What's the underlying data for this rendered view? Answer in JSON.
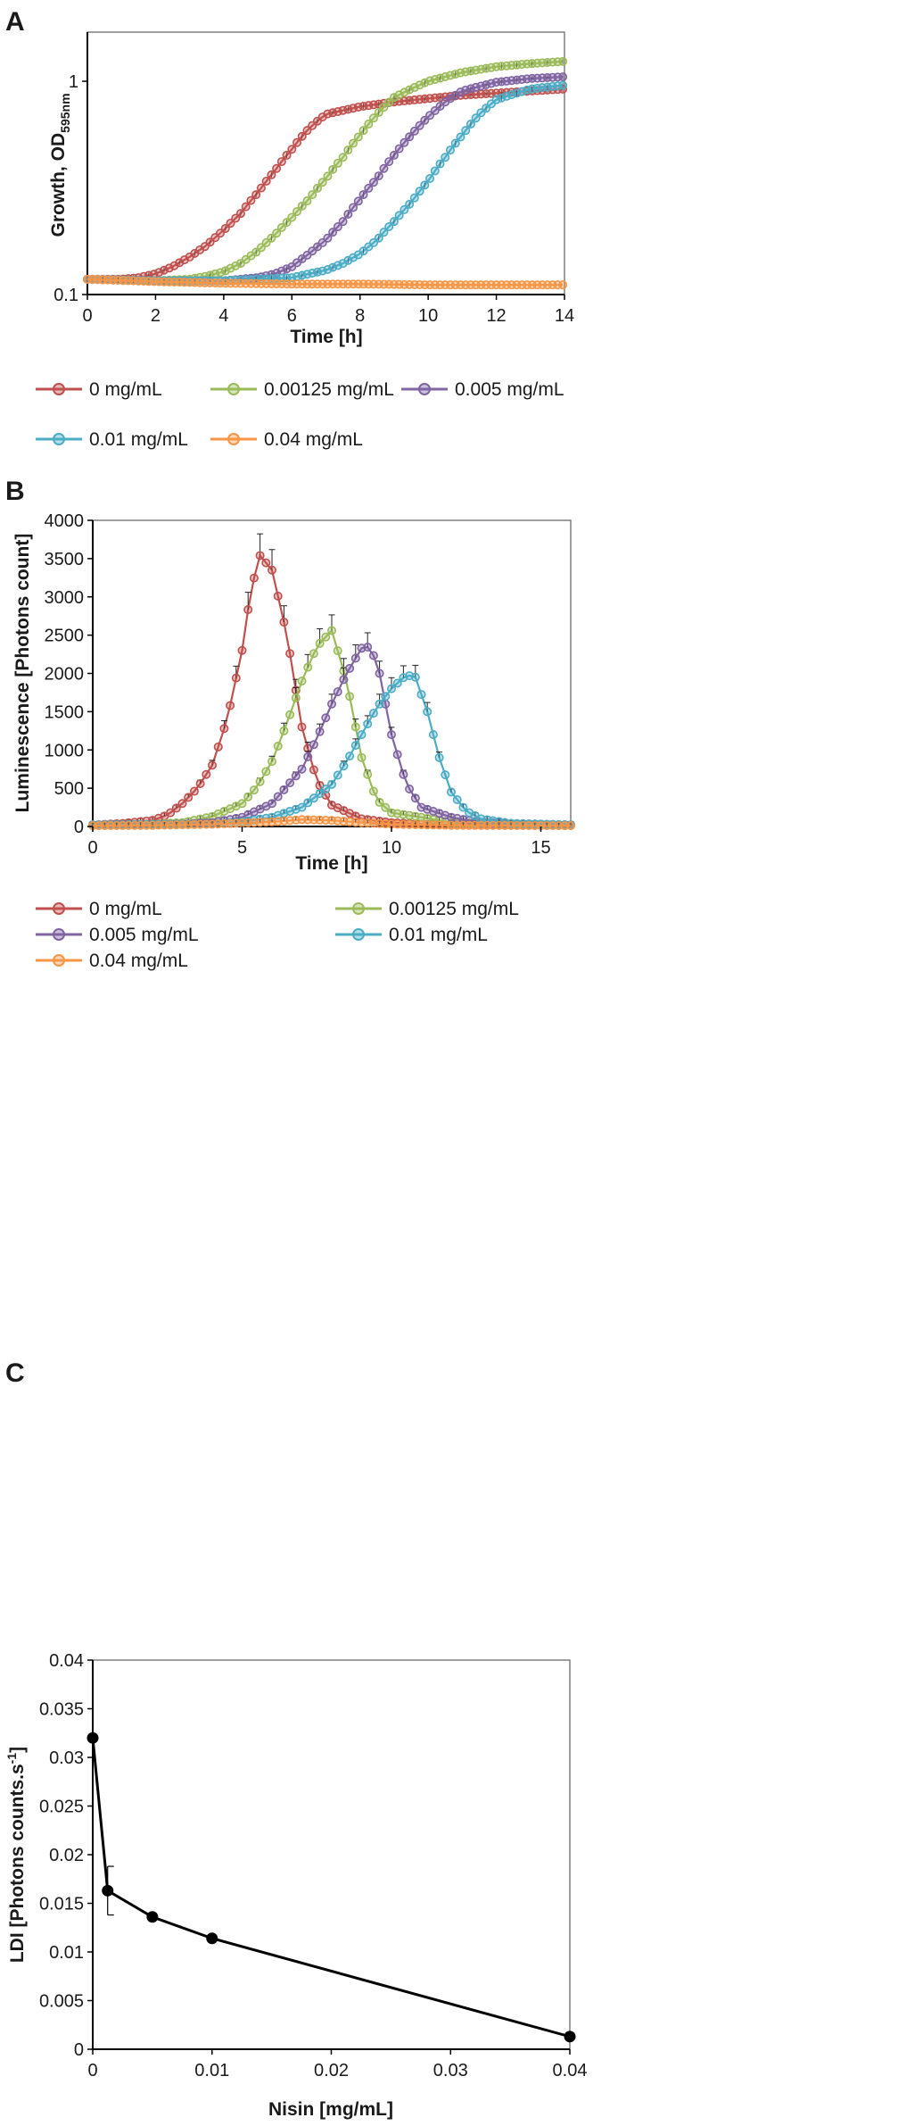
{
  "panels": {
    "A": "A",
    "B": "B",
    "C": "C"
  },
  "chart_data": [
    {
      "id": "A",
      "type": "line",
      "yscale": "log",
      "title": "",
      "xlabel": "Time [h]",
      "ylabel": "Growth, OD595nm",
      "ylabel_main": "Growth, OD",
      "ylabel_sub": "595nm",
      "xlim": [
        0,
        14
      ],
      "ylim": [
        0.1,
        1.7
      ],
      "xticks": [
        0,
        2,
        4,
        6,
        8,
        10,
        12,
        14
      ],
      "xtick_labels": [
        "0",
        "2",
        "4",
        "6",
        "8",
        "10",
        "12",
        "14"
      ],
      "yticks": [
        0.1,
        1
      ],
      "ytick_labels": [
        "0.1",
        "1"
      ],
      "grid": false,
      "legend_position": "bottom",
      "series": [
        {
          "name": "0 mg/mL",
          "color": "#c0504d",
          "x": [
            0,
            1,
            1.5,
            2,
            2.5,
            3,
            3.5,
            4,
            4.5,
            5,
            5.5,
            6,
            6.5,
            7,
            8,
            9,
            10,
            11,
            12,
            13,
            14
          ],
          "y": [
            0.118,
            0.118,
            0.12,
            0.125,
            0.135,
            0.15,
            0.17,
            0.2,
            0.24,
            0.3,
            0.38,
            0.48,
            0.6,
            0.7,
            0.76,
            0.8,
            0.83,
            0.86,
            0.88,
            0.9,
            0.92
          ]
        },
        {
          "name": "0.00125 mg/mL",
          "color": "#9bbb59",
          "x": [
            0,
            1,
            2,
            3,
            3.5,
            4,
            4.5,
            5,
            5.5,
            6,
            6.5,
            7,
            7.5,
            8,
            8.5,
            9,
            10,
            11,
            12,
            13,
            14
          ],
          "y": [
            0.118,
            0.117,
            0.116,
            0.118,
            0.122,
            0.128,
            0.14,
            0.16,
            0.19,
            0.23,
            0.28,
            0.35,
            0.44,
            0.56,
            0.7,
            0.84,
            1.0,
            1.1,
            1.17,
            1.21,
            1.24
          ]
        },
        {
          "name": "0.005 mg/mL",
          "color": "#8064a2",
          "x": [
            0,
            2,
            4,
            5,
            5.5,
            6,
            6.5,
            7,
            7.5,
            8,
            8.5,
            9,
            9.5,
            10,
            10.5,
            11,
            12,
            13,
            14
          ],
          "y": [
            0.118,
            0.116,
            0.116,
            0.12,
            0.125,
            0.135,
            0.155,
            0.18,
            0.22,
            0.28,
            0.35,
            0.45,
            0.56,
            0.68,
            0.8,
            0.9,
            0.99,
            1.03,
            1.05
          ]
        },
        {
          "name": "0.01 mg/mL",
          "color": "#4bacc6",
          "x": [
            0,
            2,
            4,
            6,
            6.5,
            7,
            7.5,
            8,
            8.5,
            9,
            9.5,
            10,
            10.5,
            11,
            11.5,
            12,
            13,
            14
          ],
          "y": [
            0.118,
            0.116,
            0.116,
            0.12,
            0.125,
            0.13,
            0.14,
            0.155,
            0.18,
            0.22,
            0.27,
            0.34,
            0.44,
            0.56,
            0.7,
            0.82,
            0.92,
            0.96
          ]
        },
        {
          "name": "0.04 mg/mL",
          "color": "#f79646",
          "x": [
            0,
            2,
            4,
            6,
            8,
            10,
            12,
            14
          ],
          "y": [
            0.118,
            0.115,
            0.113,
            0.112,
            0.112,
            0.111,
            0.111,
            0.111
          ]
        }
      ]
    },
    {
      "id": "B",
      "type": "line",
      "title": "",
      "xlabel": "Time [h]",
      "ylabel": "Luminescence [Photons count]",
      "xlim": [
        0,
        16
      ],
      "ylim": [
        0,
        4000
      ],
      "xticks": [
        0,
        5,
        10,
        15
      ],
      "xtick_labels": [
        "0",
        "5",
        "10",
        "15"
      ],
      "yticks": [
        0,
        500,
        1000,
        1500,
        2000,
        2500,
        3000,
        3500,
        4000
      ],
      "ytick_labels": [
        "0",
        "500",
        "1000",
        "1500",
        "2000",
        "2500",
        "3000",
        "3500",
        "4000"
      ],
      "grid": false,
      "legend_position": "bottom",
      "series": [
        {
          "name": "0 mg/mL",
          "color": "#c0504d",
          "x": [
            0,
            1,
            2,
            2.5,
            3,
            3.5,
            4,
            4.5,
            5,
            5.3,
            5.6,
            6,
            6.5,
            7,
            7.5,
            8,
            9,
            10,
            11,
            12,
            16
          ],
          "y": [
            20,
            40,
            80,
            150,
            300,
            500,
            800,
            1400,
            2300,
            3100,
            3540,
            3350,
            2500,
            1300,
            600,
            280,
            100,
            50,
            30,
            20,
            20
          ]
        },
        {
          "name": "0.00125 mg/mL",
          "color": "#9bbb59",
          "x": [
            0,
            2,
            3,
            4,
            5,
            5.5,
            6,
            6.5,
            7,
            7.5,
            8,
            8.5,
            9,
            9.5,
            10,
            11,
            12,
            16
          ],
          "y": [
            20,
            30,
            50,
            130,
            300,
            520,
            850,
            1350,
            1900,
            2350,
            2560,
            1900,
            900,
            350,
            180,
            120,
            50,
            20
          ]
        },
        {
          "name": "0.005 mg/mL",
          "color": "#8064a2",
          "x": [
            0,
            3,
            4,
            5,
            6,
            7,
            7.5,
            8,
            8.5,
            9,
            9.3,
            9.6,
            10,
            10.5,
            11,
            12,
            13,
            16
          ],
          "y": [
            20,
            30,
            50,
            120,
            300,
            750,
            1150,
            1600,
            2000,
            2330,
            2350,
            2000,
            1200,
            550,
            250,
            120,
            50,
            20
          ]
        },
        {
          "name": "0.01 mg/mL",
          "color": "#4bacc6",
          "x": [
            0,
            4,
            5,
            6,
            7,
            8,
            8.5,
            9,
            9.5,
            10,
            10.5,
            10.8,
            11.2,
            11.6,
            12,
            12.5,
            13,
            14,
            16
          ],
          "y": [
            20,
            30,
            60,
            120,
            250,
            550,
            850,
            1200,
            1550,
            1800,
            1980,
            1950,
            1500,
            900,
            450,
            200,
            100,
            40,
            20
          ]
        },
        {
          "name": "0.04 mg/mL",
          "color": "#f79646",
          "x": [
            0,
            2,
            4,
            6,
            7,
            8,
            9,
            10,
            12,
            16
          ],
          "y": [
            10,
            15,
            30,
            60,
            90,
            80,
            50,
            30,
            15,
            10
          ]
        }
      ]
    },
    {
      "id": "C",
      "type": "line",
      "title": "",
      "xlabel": "Nisin [mg/mL]",
      "ylabel": "LDI [Photons counts.s-1]",
      "ylabel_main": "LDI [Photons counts.s",
      "ylabel_sup": "-1",
      "ylabel_end": "]",
      "xlim": [
        0,
        0.04
      ],
      "ylim": [
        0,
        0.04
      ],
      "xticks": [
        0,
        0.01,
        0.02,
        0.03,
        0.04
      ],
      "xtick_labels": [
        "0",
        "0.01",
        "0.02",
        "0.03",
        "0.04"
      ],
      "yticks": [
        0,
        0.005,
        0.01,
        0.015,
        0.02,
        0.025,
        0.03,
        0.035,
        0.04
      ],
      "ytick_labels": [
        "0",
        "0.005",
        "0.01",
        "0.015",
        "0.02",
        "0.025",
        "0.03",
        "0.035",
        "0.04"
      ],
      "grid": false,
      "legend_position": "none",
      "series": [
        {
          "name": "LDI",
          "color": "#000000",
          "x": [
            0,
            0.00125,
            0.005,
            0.01,
            0.04
          ],
          "y": [
            0.032,
            0.0163,
            0.0136,
            0.0114,
            0.0013
          ],
          "err": [
            0,
            0.0025,
            0,
            0,
            0
          ]
        }
      ]
    }
  ]
}
